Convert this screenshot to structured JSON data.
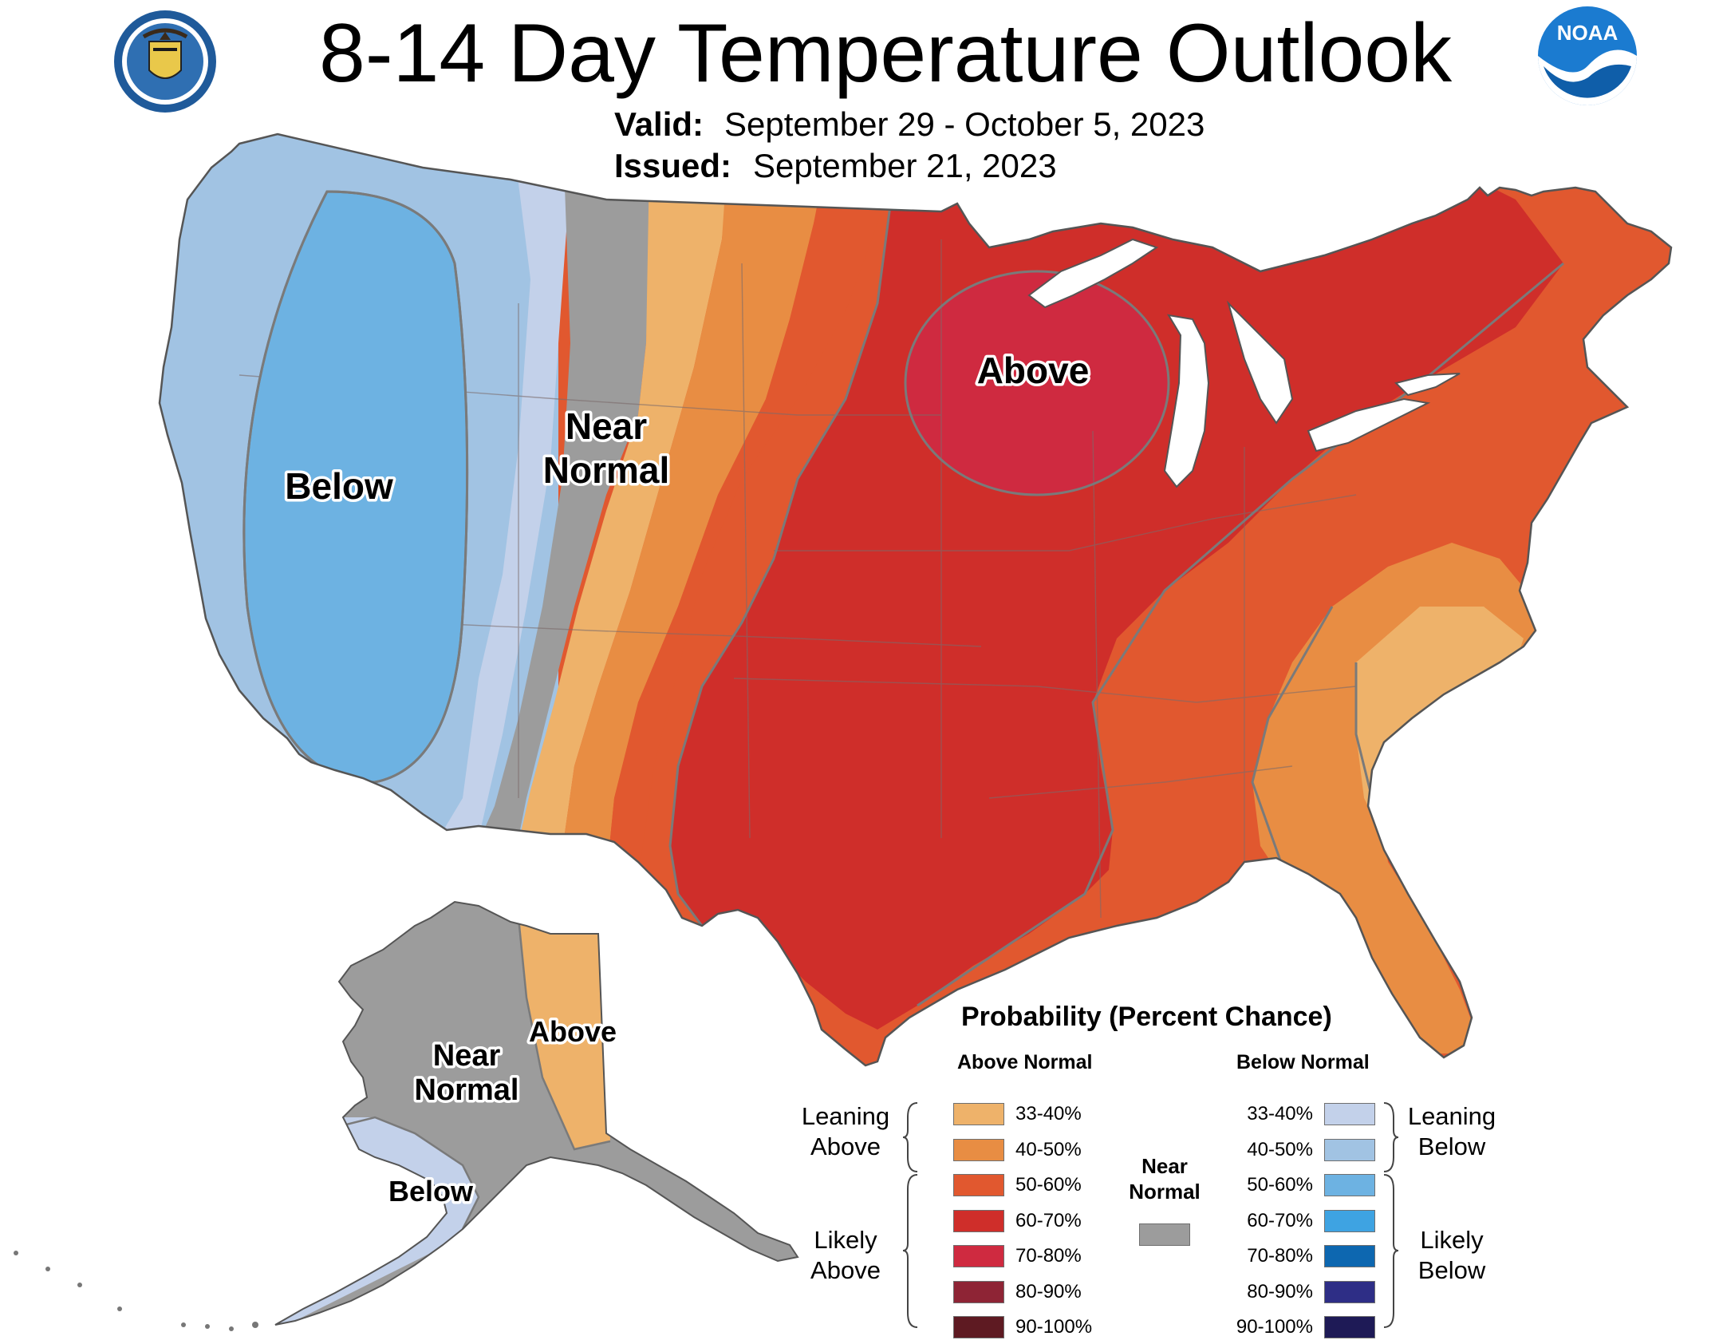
{
  "header": {
    "title": "8-14 Day Temperature Outlook",
    "valid_label": "Valid:",
    "valid_value": "September 29 - October 5, 2023",
    "issued_label": "Issued:",
    "issued_value": "September 21, 2023"
  },
  "logos": {
    "left": "commerce-seal",
    "right": "noaa-logo",
    "noaa_text": "NOAA"
  },
  "map_labels": {
    "below": "Below",
    "near_line1": "Near",
    "near_line2": "Normal",
    "above": "Above",
    "ak_near_line1": "Near",
    "ak_near_line2": "Normal",
    "ak_above": "Above",
    "ak_below": "Below"
  },
  "legend": {
    "title": "Probability (Percent Chance)",
    "above_header": "Above Normal",
    "below_header": "Below Normal",
    "near_label_line1": "Near",
    "near_label_line2": "Normal",
    "leaning_above_1": "Leaning",
    "leaning_above_2": "Above",
    "likely_above_1": "Likely",
    "likely_above_2": "Above",
    "leaning_below_1": "Leaning",
    "leaning_below_2": "Below",
    "likely_below_1": "Likely",
    "likely_below_2": "Below",
    "above": [
      {
        "range": "33-40%",
        "color": "#eeb26a"
      },
      {
        "range": "40-50%",
        "color": "#e88d43"
      },
      {
        "range": "50-60%",
        "color": "#e1582f"
      },
      {
        "range": "60-70%",
        "color": "#cf2e2a"
      },
      {
        "range": "70-80%",
        "color": "#cf2a40"
      },
      {
        "range": "80-90%",
        "color": "#8e2435"
      },
      {
        "range": "90-100%",
        "color": "#5e1a22"
      }
    ],
    "near_color": "#9c9c9c",
    "below": [
      {
        "range": "33-40%",
        "color": "#c3d1ea"
      },
      {
        "range": "40-50%",
        "color": "#a1c3e3"
      },
      {
        "range": "50-60%",
        "color": "#6db2e2"
      },
      {
        "range": "60-70%",
        "color": "#3ea3e2"
      },
      {
        "range": "70-80%",
        "color": "#0d67b0"
      },
      {
        "range": "80-90%",
        "color": "#2e2e86"
      },
      {
        "range": "90-100%",
        "color": "#1e1a56"
      }
    ]
  }
}
